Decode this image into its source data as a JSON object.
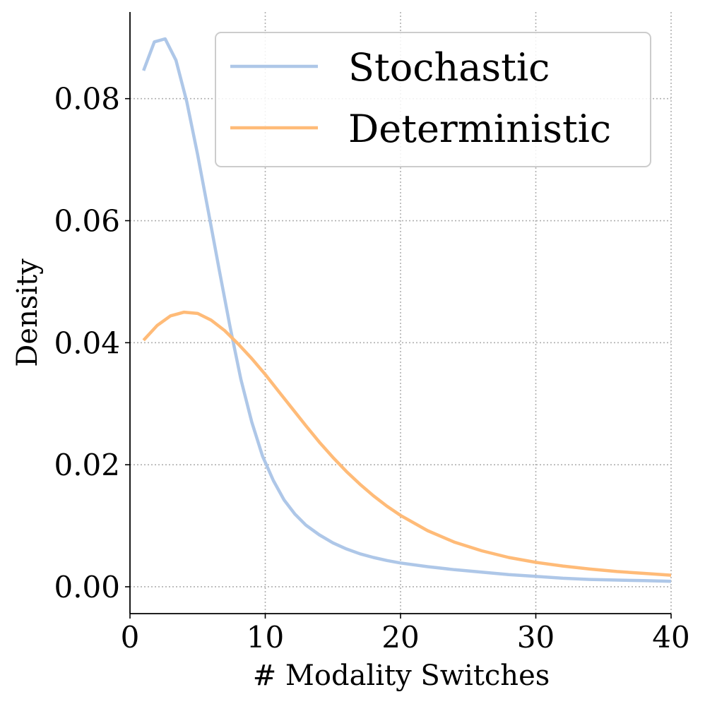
{
  "chart_data": {
    "type": "line",
    "title": "",
    "xlabel": "# Modality Switches",
    "ylabel": "Density",
    "xlim": [
      0,
      40
    ],
    "ylim": [
      -0.0044,
      0.0942
    ],
    "xticks": [
      0,
      10,
      20,
      30,
      40
    ],
    "xtick_labels": [
      "0",
      "10",
      "20",
      "30",
      "40"
    ],
    "yticks": [
      0.0,
      0.02,
      0.04,
      0.06,
      0.08
    ],
    "ytick_labels": [
      "0.00",
      "0.02",
      "0.04",
      "0.06",
      "0.08"
    ],
    "grid": true,
    "legend_position": "top-right",
    "series": [
      {
        "name": "Stochastic",
        "color": "#aec7e8",
        "x": [
          1,
          1.8,
          2.6,
          3.4,
          4.2,
          5.0,
          5.8,
          6.6,
          7.4,
          8.2,
          9.0,
          9.8,
          10.6,
          11.4,
          12.2,
          13.0,
          14.0,
          15.0,
          16.0,
          17.0,
          18.0,
          19.0,
          20.0,
          22.0,
          24.0,
          26.0,
          28.0,
          30.0,
          32.0,
          34.0,
          36.0,
          38.0,
          40.0
        ],
        "values": [
          0.0846,
          0.0893,
          0.0898,
          0.0863,
          0.0795,
          0.0708,
          0.0614,
          0.0519,
          0.0426,
          0.034,
          0.027,
          0.0214,
          0.0174,
          0.0142,
          0.0119,
          0.0101,
          0.0085,
          0.0072,
          0.0062,
          0.0054,
          0.0048,
          0.0043,
          0.0039,
          0.0033,
          0.0028,
          0.0024,
          0.002,
          0.0017,
          0.0014,
          0.0012,
          0.0011,
          0.001,
          0.0009
        ]
      },
      {
        "name": "Deterministic",
        "color": "#ffbb78",
        "x": [
          1,
          2,
          3,
          4,
          5,
          6,
          7,
          8,
          9,
          10,
          11,
          12,
          13,
          14,
          15,
          16,
          17,
          18,
          19,
          20,
          22,
          24,
          26,
          28,
          30,
          32,
          34,
          36,
          38,
          40
        ],
        "values": [
          0.0404,
          0.0428,
          0.0444,
          0.045,
          0.0448,
          0.0437,
          0.042,
          0.0398,
          0.0374,
          0.0348,
          0.032,
          0.0292,
          0.0264,
          0.0237,
          0.0212,
          0.0189,
          0.0168,
          0.0149,
          0.0132,
          0.0117,
          0.0092,
          0.0073,
          0.0059,
          0.0048,
          0.004,
          0.0034,
          0.0029,
          0.0025,
          0.0022,
          0.0019
        ]
      }
    ]
  }
}
